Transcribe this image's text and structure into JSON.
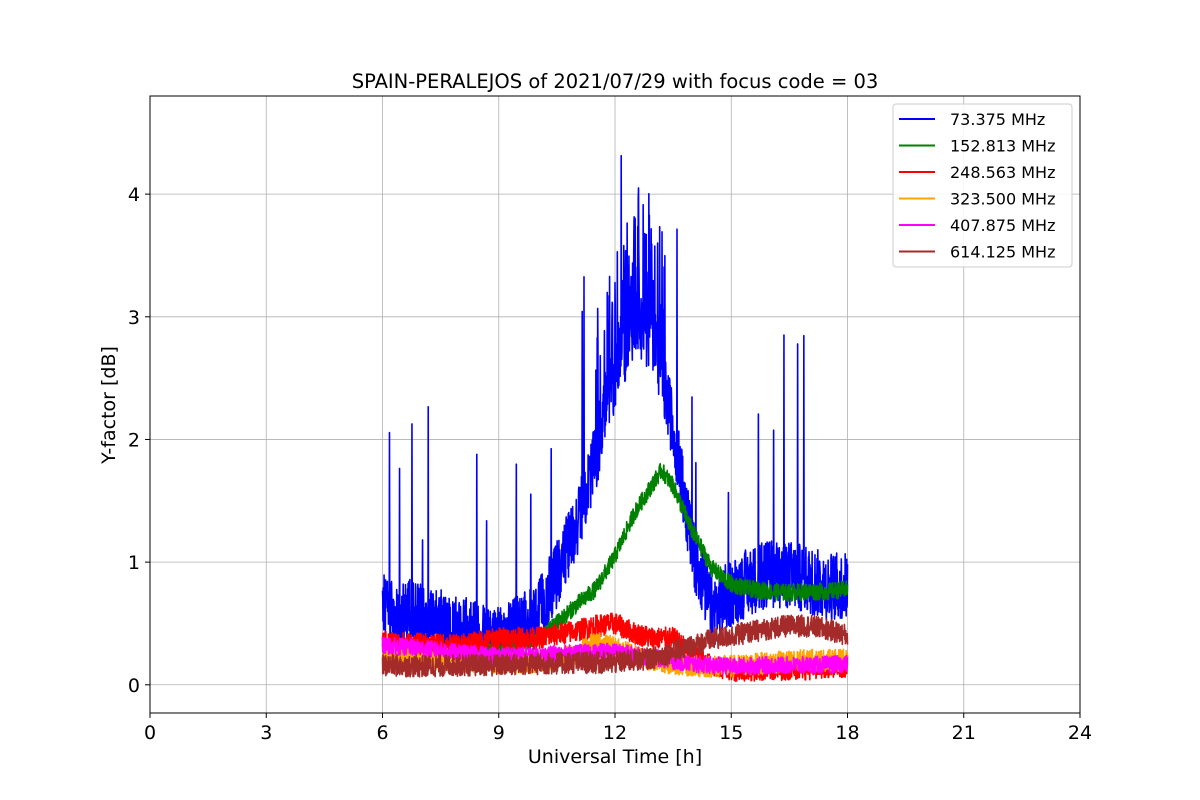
{
  "chart_data": {
    "type": "line",
    "title": "SPAIN-PERALEJOS of 2021/07/29 with focus code = 03",
    "xlabel": "Universal Time [h]",
    "ylabel": "Y-factor [dB]",
    "xlim": [
      0,
      24
    ],
    "ylim": [
      -0.23,
      4.8
    ],
    "xticks": [
      0,
      3,
      6,
      9,
      12,
      15,
      18,
      21,
      24
    ],
    "yticks": [
      0,
      1,
      2,
      3,
      4
    ],
    "grid": true,
    "legend_position": "upper right",
    "series": [
      {
        "name": " 73.375 MHz",
        "color": "#0000ff",
        "x": [
          6.0,
          6.3,
          6.6,
          7.0,
          7.5,
          8.0,
          8.5,
          9.0,
          9.5,
          10.0,
          10.5,
          11.0,
          11.5,
          12.0,
          12.5,
          13.0,
          13.5,
          14.0,
          14.5,
          15.0,
          15.5,
          16.0,
          16.5,
          17.0,
          17.5,
          18.0
        ],
        "values": [
          0.65,
          0.55,
          0.6,
          0.55,
          0.5,
          0.45,
          0.4,
          0.35,
          0.45,
          0.55,
          0.9,
          1.3,
          1.85,
          2.5,
          2.95,
          2.8,
          2.1,
          1.1,
          0.6,
          0.75,
          0.85,
          0.9,
          0.9,
          0.85,
          0.8,
          0.8
        ]
      },
      {
        "name": "152.813 MHz",
        "color": "#008000",
        "x": [
          6.0,
          7.0,
          8.0,
          9.0,
          10.0,
          10.5,
          11.0,
          11.5,
          12.0,
          12.5,
          13.0,
          13.2,
          13.5,
          14.0,
          14.5,
          15.0,
          15.5,
          16.0,
          16.5,
          17.0,
          17.5,
          18.0
        ],
        "values": [
          0.3,
          0.3,
          0.25,
          0.3,
          0.35,
          0.5,
          0.65,
          0.78,
          1.05,
          1.4,
          1.65,
          1.75,
          1.62,
          1.25,
          0.95,
          0.82,
          0.78,
          0.76,
          0.75,
          0.76,
          0.76,
          0.78
        ]
      },
      {
        "name": "248.563 MHz",
        "color": "#ff0000",
        "x": [
          6.0,
          7.0,
          8.0,
          9.0,
          10.0,
          11.0,
          11.5,
          12.0,
          12.5,
          13.0,
          13.5,
          14.0,
          14.5,
          15.0,
          15.5,
          16.0,
          16.5,
          17.0,
          17.5,
          18.0
        ],
        "values": [
          0.35,
          0.33,
          0.32,
          0.38,
          0.38,
          0.44,
          0.48,
          0.5,
          0.42,
          0.38,
          0.38,
          0.25,
          0.15,
          0.12,
          0.12,
          0.12,
          0.13,
          0.13,
          0.15,
          0.15
        ]
      },
      {
        "name": "323.500 MHz",
        "color": "#ffa500",
        "x": [
          6.0,
          7.0,
          8.0,
          9.0,
          10.0,
          11.0,
          11.5,
          12.0,
          12.5,
          13.0,
          14.0,
          15.0,
          16.0,
          17.0,
          18.0
        ],
        "values": [
          0.25,
          0.22,
          0.2,
          0.18,
          0.18,
          0.25,
          0.35,
          0.3,
          0.25,
          0.2,
          0.15,
          0.15,
          0.18,
          0.2,
          0.2
        ]
      },
      {
        "name": "407.875 MHz",
        "color": "#ff00ff",
        "x": [
          6.0,
          7.0,
          8.0,
          9.0,
          10.0,
          11.0,
          12.0,
          13.0,
          14.0,
          15.0,
          16.0,
          17.0,
          18.0
        ],
        "values": [
          0.32,
          0.3,
          0.26,
          0.24,
          0.24,
          0.26,
          0.27,
          0.22,
          0.17,
          0.15,
          0.16,
          0.16,
          0.17
        ]
      },
      {
        "name": "614.125 MHz",
        "color": "#a52a2a",
        "x": [
          6.0,
          7.0,
          8.0,
          9.0,
          10.0,
          11.0,
          12.0,
          13.0,
          13.5,
          14.0,
          14.5,
          15.0,
          15.5,
          16.0,
          16.5,
          17.0,
          17.5,
          18.0
        ],
        "values": [
          0.16,
          0.15,
          0.16,
          0.16,
          0.17,
          0.18,
          0.18,
          0.22,
          0.27,
          0.32,
          0.37,
          0.4,
          0.43,
          0.46,
          0.48,
          0.48,
          0.45,
          0.4
        ]
      }
    ]
  }
}
